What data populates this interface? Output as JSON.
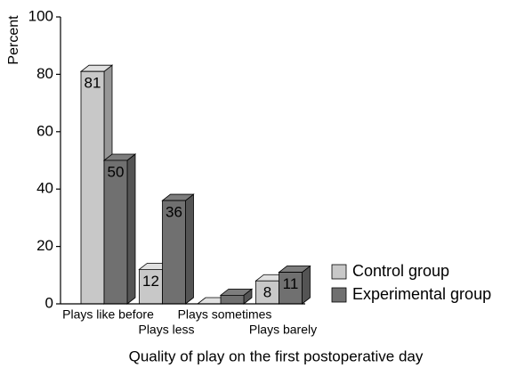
{
  "chart_data": {
    "type": "bar3d",
    "x_label": "Quality of play on the first postoperative day",
    "y_label": "Percent",
    "categories": [
      "Plays like before",
      "Plays less",
      "Plays sometimes",
      "Plays barely"
    ],
    "series": [
      {
        "name": "Control group",
        "color": "#c8c8c8",
        "values": [
          81,
          12,
          0,
          8
        ],
        "value_labels": [
          "81",
          "12",
          null,
          "8"
        ]
      },
      {
        "name": "Experimental group",
        "color": "#707070",
        "values": [
          50,
          36,
          3,
          11
        ],
        "value_labels": [
          "50",
          "36",
          null,
          "11"
        ]
      }
    ],
    "ylim": [
      0,
      100
    ],
    "yticks": [
      0,
      20,
      40,
      60,
      80,
      100
    ],
    "legend": "lower right"
  }
}
